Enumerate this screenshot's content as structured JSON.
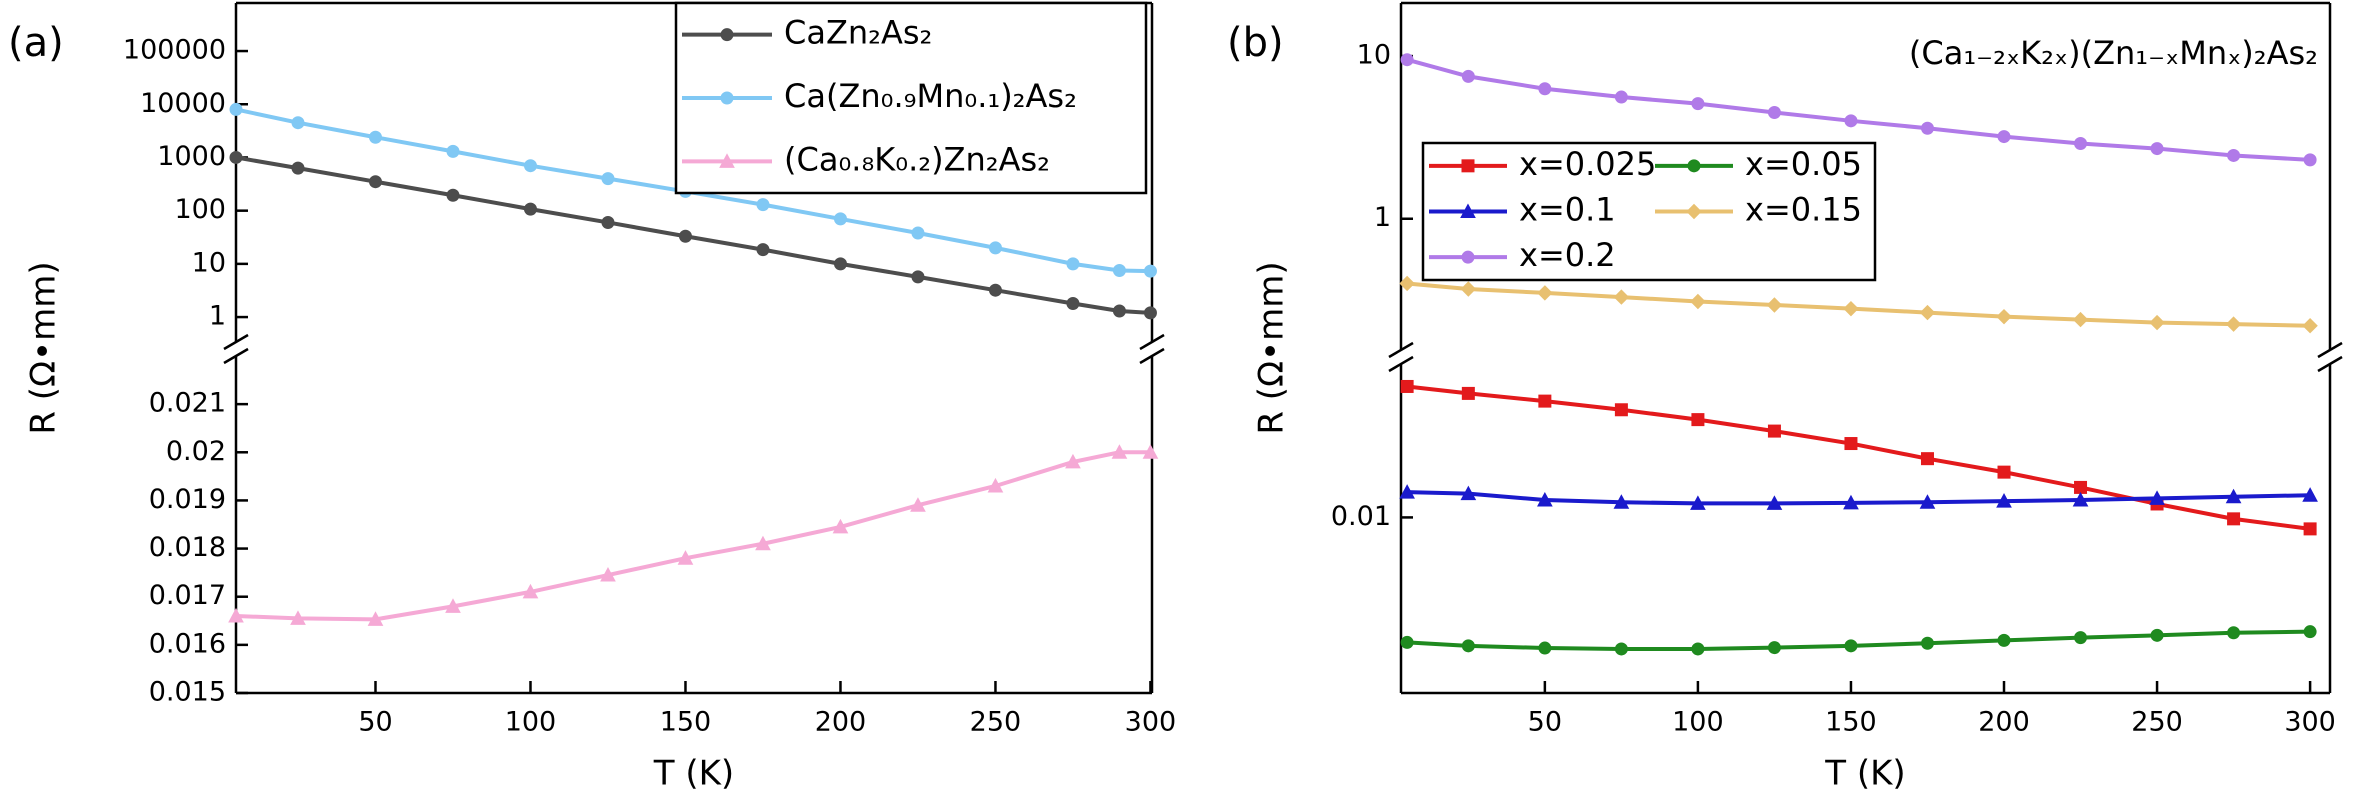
{
  "chart_data": [
    {
      "type": "line",
      "panel_label": "(a)",
      "xlabel": "T (K)",
      "ylabel": "R (Ω•mm)",
      "x": [
        5,
        25,
        50,
        75,
        100,
        125,
        150,
        175,
        200,
        225,
        250,
        275,
        290,
        300
      ],
      "xlim": [
        5,
        300.5
      ],
      "xticks": [
        50,
        100,
        150,
        200,
        250,
        300
      ],
      "ylim": [
        0.015,
        0.022
      ],
      "yticks": [
        0.015,
        0.016,
        0.017,
        0.018,
        0.019,
        0.02,
        0.021
      ],
      "ylog": false,
      "y2lim": [
        0.34,
        800000
      ],
      "y2ticks": [
        1,
        10,
        100,
        1000,
        10000,
        100000
      ],
      "y2log": true,
      "legend": "upper right",
      "series": [
        {
          "name": "CaZn₂As₂",
          "color": "#4d4d4d",
          "marker": "circle",
          "axis": "y2",
          "values": [
            1000,
            630,
            350,
            195,
            107,
            60,
            33,
            18.5,
            10,
            5.7,
            3.2,
            1.8,
            1.3,
            1.2
          ]
        },
        {
          "name": "Ca(Zn₀.₉Mn₀.₁)₂As₂",
          "color": "#80c8f4",
          "marker": "circle",
          "axis": "y2",
          "values": [
            8000,
            4500,
            2400,
            1300,
            700,
            400,
            230,
            130,
            70,
            38,
            20,
            10,
            7.5,
            7.3
          ]
        },
        {
          "name": "(Ca₀.₈K₀.₂)Zn₂As₂",
          "color": "#f5a9d5",
          "marker": "triangle",
          "values": [
            0.0166,
            0.01655,
            0.01653,
            0.0168,
            0.0171,
            0.01745,
            0.0178,
            0.0181,
            0.01845,
            0.0189,
            0.0193,
            0.0198,
            0.02,
            0.02
          ]
        }
      ]
    },
    {
      "type": "line",
      "panel_label": "(b)",
      "xlabel": "T (K)",
      "ylabel": "R (Ω•mm)",
      "annotation": "(Ca₁₋₂ₓK₂ₓ)(Zn₁₋ₓMnₓ)₂As₂",
      "x": [
        5,
        25,
        50,
        75,
        100,
        125,
        150,
        175,
        200,
        225,
        250,
        275,
        300
      ],
      "xlim": [
        3,
        306.5
      ],
      "xticks": [
        50,
        100,
        150,
        200,
        250,
        300
      ],
      "ylim": [
        0.00083,
        0.088
      ],
      "yticks": [
        0.01
      ],
      "ylog": true,
      "y2lim": [
        0.156,
        21.2
      ],
      "y2ticks": [
        1,
        10
      ],
      "y2log": true,
      "legend": "upper left",
      "series": [
        {
          "name": "x=0.025",
          "color": "#e31a1c",
          "marker": "square",
          "values": [
            0.064,
            0.058,
            0.052,
            0.046,
            0.04,
            0.034,
            0.0285,
            0.023,
            0.019,
            0.0153,
            0.0121,
            0.0098,
            0.0085
          ]
        },
        {
          "name": "x=0.05",
          "color": "#1f8a1f",
          "marker": "circle",
          "values": [
            0.0017,
            0.00162,
            0.00157,
            0.00155,
            0.00155,
            0.00158,
            0.00162,
            0.00168,
            0.00175,
            0.00182,
            0.00188,
            0.00195,
            0.00198
          ]
        },
        {
          "name": "x=0.1",
          "color": "#1a1acc",
          "marker": "triangle",
          "values": [
            0.0143,
            0.014,
            0.0128,
            0.0124,
            0.0122,
            0.0122,
            0.0123,
            0.0124,
            0.0126,
            0.0128,
            0.0131,
            0.0134,
            0.0137
          ]
        },
        {
          "name": "x=0.15",
          "color": "#e8c070",
          "marker": "diamond",
          "axis": "y2",
          "values": [
            0.4,
            0.37,
            0.35,
            0.33,
            0.31,
            0.295,
            0.28,
            0.265,
            0.25,
            0.24,
            0.23,
            0.225,
            0.22
          ]
        },
        {
          "name": "x=0.2",
          "color": "#b07ae8",
          "marker": "circle",
          "axis": "y2",
          "values": [
            9.5,
            7.5,
            6.3,
            5.6,
            5.1,
            4.5,
            4.0,
            3.6,
            3.2,
            2.9,
            2.7,
            2.45,
            2.3
          ]
        }
      ]
    }
  ]
}
